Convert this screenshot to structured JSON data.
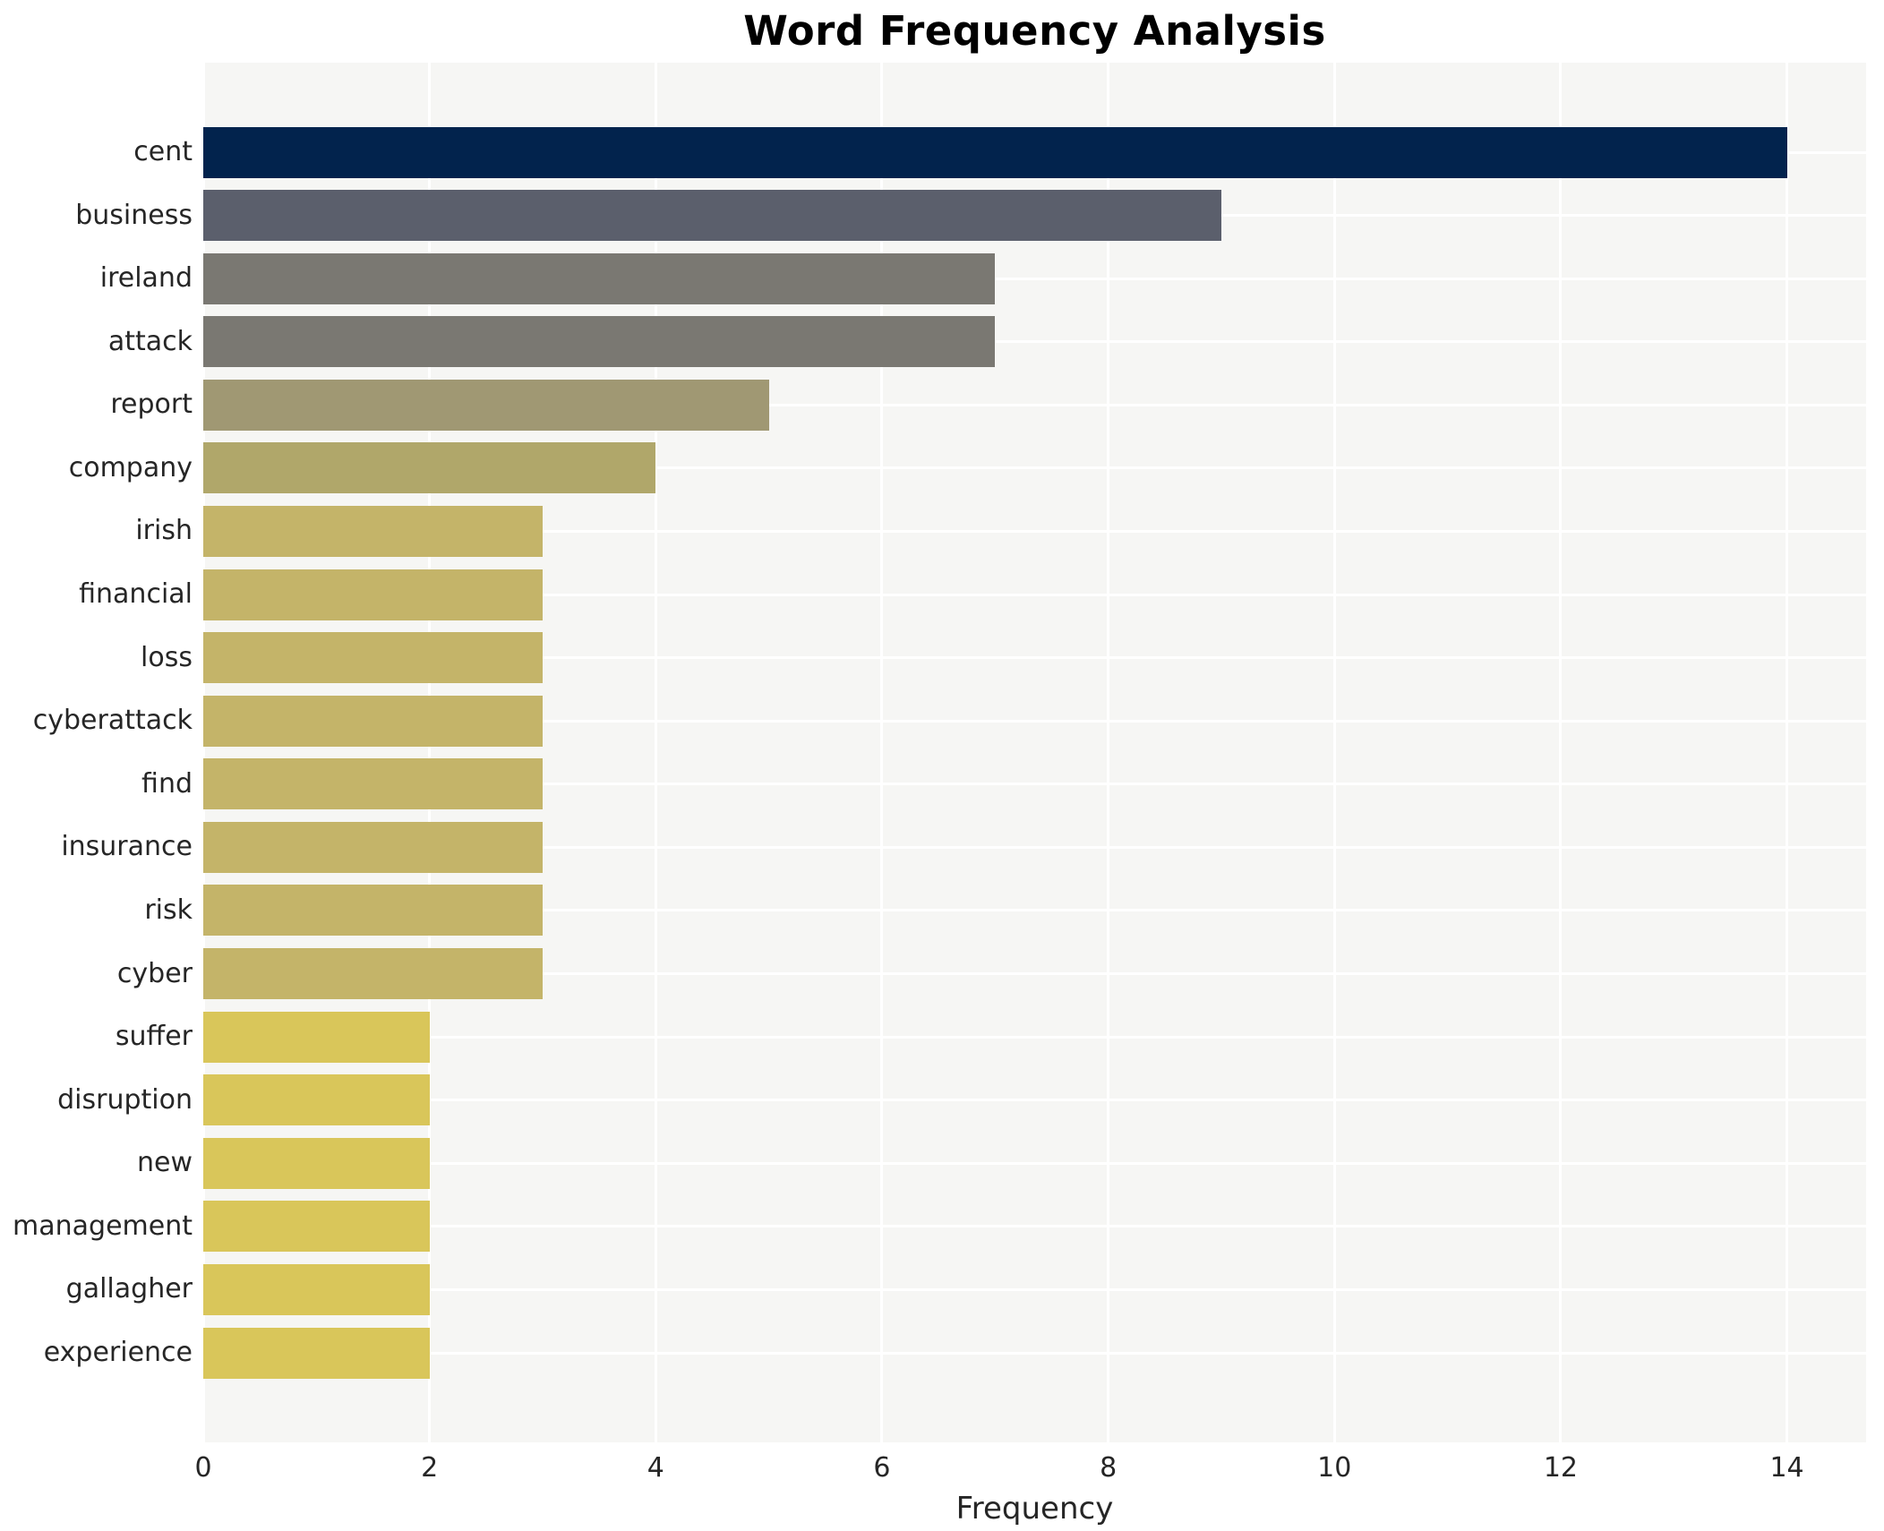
{
  "chart_data": {
    "type": "bar",
    "orientation": "horizontal",
    "title": "Word Frequency Analysis",
    "xlabel": "Frequency",
    "ylabel": "",
    "categories": [
      "cent",
      "business",
      "ireland",
      "attack",
      "report",
      "company",
      "irish",
      "financial",
      "loss",
      "cyberattack",
      "find",
      "insurance",
      "risk",
      "cyber",
      "suffer",
      "disruption",
      "new",
      "management",
      "gallagher",
      "experience"
    ],
    "values": [
      14,
      9,
      7,
      7,
      5,
      4,
      3,
      3,
      3,
      3,
      3,
      3,
      3,
      3,
      2,
      2,
      2,
      2,
      2,
      2
    ],
    "bar_colors": [
      "#02234d",
      "#5b5f6c",
      "#7a7872",
      "#7a7872",
      "#a09873",
      "#b0a76a",
      "#c4b469",
      "#c4b469",
      "#c4b469",
      "#c4b469",
      "#c4b469",
      "#c4b469",
      "#c4b469",
      "#c4b469",
      "#d9c65a",
      "#d9c65a",
      "#d9c65a",
      "#d9c65a",
      "#d9c65a",
      "#d9c65a"
    ],
    "x_ticks": [
      0,
      2,
      4,
      6,
      8,
      10,
      12,
      14
    ],
    "xlim": [
      0,
      14.7
    ],
    "grid": true,
    "legend": "none",
    "plot_bg_color": "#f6f6f4",
    "grid_color": "#ffffff",
    "text_color": "#262626"
  }
}
